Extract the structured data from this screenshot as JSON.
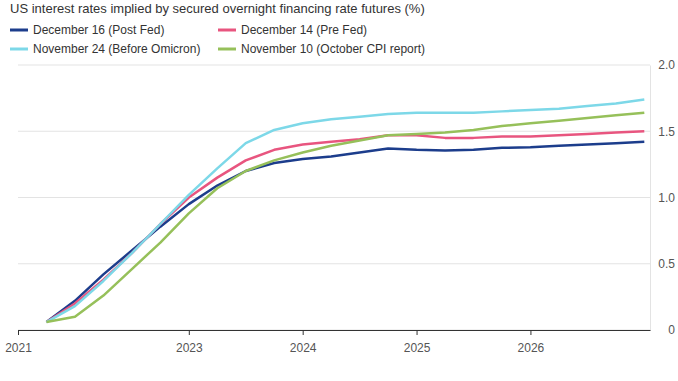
{
  "chart_data": {
    "type": "line",
    "title": "US interest rates implied by secured overnight financing rate futures (%)",
    "x": [
      2021.75,
      2022.0,
      2022.25,
      2022.5,
      2022.75,
      2023.0,
      2023.25,
      2023.5,
      2023.75,
      2024.0,
      2024.25,
      2024.5,
      2024.75,
      2025.0,
      2025.25,
      2025.5,
      2025.75,
      2026.0,
      2026.25,
      2026.5,
      2026.75,
      2027.0
    ],
    "series": [
      {
        "name": "December 16 (Post Fed)",
        "color": "#1c3d8c",
        "values": [
          0.06,
          0.22,
          0.42,
          0.6,
          0.78,
          0.95,
          1.09,
          1.2,
          1.26,
          1.29,
          1.31,
          1.34,
          1.37,
          1.36,
          1.355,
          1.36,
          1.375,
          1.38,
          1.39,
          1.4,
          1.41,
          1.42
        ]
      },
      {
        "name": "December 14 (Pre Fed)",
        "color": "#e8557f",
        "values": [
          0.06,
          0.2,
          0.38,
          0.58,
          0.8,
          1.0,
          1.15,
          1.28,
          1.36,
          1.4,
          1.42,
          1.44,
          1.47,
          1.47,
          1.45,
          1.45,
          1.46,
          1.46,
          1.47,
          1.48,
          1.49,
          1.5
        ]
      },
      {
        "name": "November 24 (Before Omicron)",
        "color": "#7dd8e8",
        "values": [
          0.06,
          0.18,
          0.37,
          0.58,
          0.8,
          1.02,
          1.22,
          1.41,
          1.51,
          1.56,
          1.59,
          1.61,
          1.63,
          1.64,
          1.64,
          1.64,
          1.65,
          1.66,
          1.67,
          1.69,
          1.71,
          1.74
        ]
      },
      {
        "name": "November 10 (October CPI report)",
        "color": "#96c05a",
        "values": [
          0.06,
          0.1,
          0.26,
          0.46,
          0.66,
          0.88,
          1.07,
          1.2,
          1.28,
          1.34,
          1.39,
          1.43,
          1.47,
          1.48,
          1.49,
          1.51,
          1.54,
          1.56,
          1.58,
          1.6,
          1.62,
          1.64
        ]
      }
    ],
    "xlim": [
      2021.5,
      2027.05
    ],
    "xticks": [
      {
        "value": 2021.5,
        "label": "2021"
      },
      2023,
      2024,
      2025,
      2026
    ],
    "ylim": [
      0,
      2
    ],
    "yticks": [
      0,
      0.5,
      {
        "value": 1,
        "label": "1.0"
      },
      1.5,
      {
        "value": 2,
        "label": "2.0"
      }
    ],
    "grid": true,
    "legend": "top-left"
  }
}
